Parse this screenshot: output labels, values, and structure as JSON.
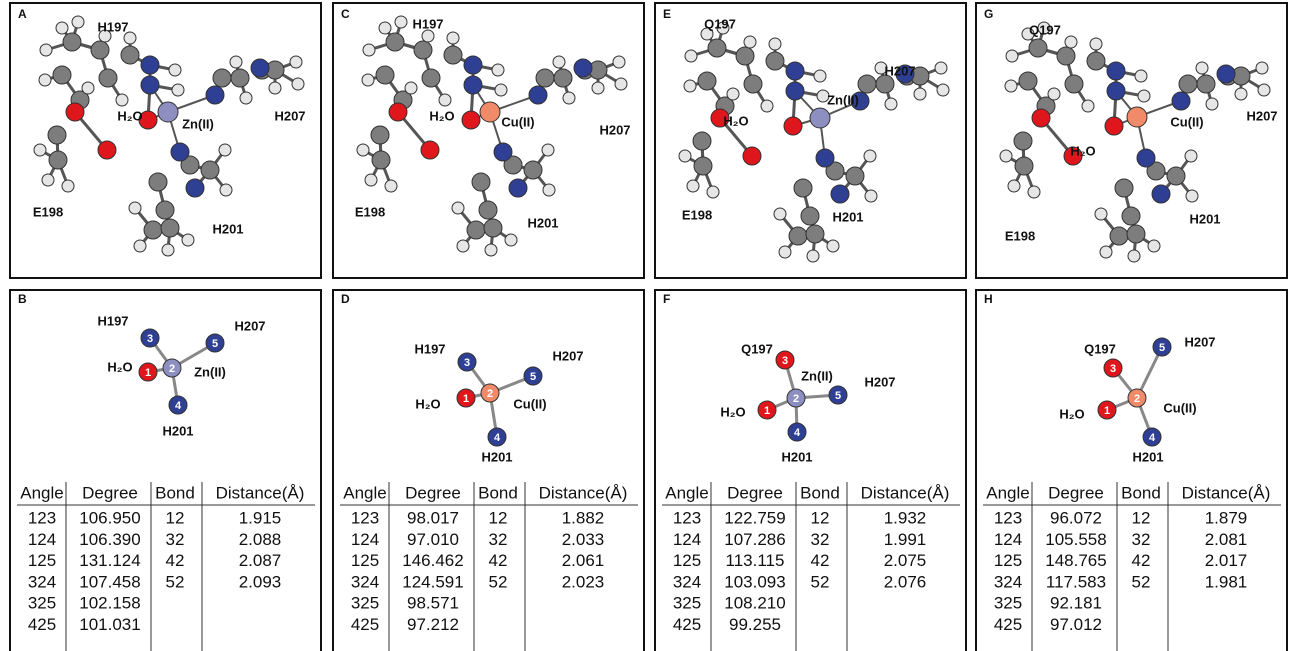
{
  "columns": [
    {
      "structure": {
        "letter": "A",
        "labels": [
          "H197",
          "H₂O",
          "Zn(II)",
          "H207",
          "E198",
          "H201"
        ]
      },
      "schematic": {
        "letter": "B",
        "labels": [
          "H197",
          "H207",
          "H₂O",
          "Zn(II)",
          "H201"
        ],
        "atom_numbers": [
          "1",
          "2",
          "3",
          "4",
          "5"
        ]
      },
      "table": {
        "header": [
          "Angle",
          "Degree",
          "Bond",
          "Distance(Å)"
        ],
        "rows": [
          [
            "123",
            "106.950",
            "12",
            "1.915"
          ],
          [
            "124",
            "106.390",
            "32",
            "2.088"
          ],
          [
            "125",
            "131.124",
            "42",
            "2.087"
          ],
          [
            "324",
            "107.458",
            "52",
            "2.093"
          ],
          [
            "325",
            "102.158"
          ],
          [
            "425",
            "101.031"
          ]
        ]
      }
    },
    {
      "structure": {
        "letter": "C",
        "labels": [
          "H197",
          "H₂O",
          "Cu(II)",
          "H207",
          "E198",
          "H201"
        ]
      },
      "schematic": {
        "letter": "D",
        "labels": [
          "H197",
          "H207",
          "H₂O",
          "Cu(II)",
          "H201"
        ],
        "atom_numbers": [
          "1",
          "2",
          "3",
          "4",
          "5"
        ]
      },
      "table": {
        "header": [
          "Angle",
          "Degree",
          "Bond",
          "Distance(Å)"
        ],
        "rows": [
          [
            "123",
            "98.017",
            "12",
            "1.882"
          ],
          [
            "124",
            "97.010",
            "32",
            "2.033"
          ],
          [
            "125",
            "146.462",
            "42",
            "2.061"
          ],
          [
            "324",
            "124.591",
            "52",
            "2.023"
          ],
          [
            "325",
            "98.571"
          ],
          [
            "425",
            "97.212"
          ]
        ]
      }
    },
    {
      "structure": {
        "letter": "E",
        "labels": [
          "Q197",
          "H₂O",
          "Zn(II)",
          "H207",
          "E198",
          "H201"
        ]
      },
      "schematic": {
        "letter": "F",
        "labels": [
          "Q197",
          "H207",
          "H₂O",
          "Zn(II)",
          "H201"
        ],
        "atom_numbers": [
          "1",
          "2",
          "3",
          "4",
          "5"
        ]
      },
      "table": {
        "header": [
          "Angle",
          "Degree",
          "Bond",
          "Distance(Å)"
        ],
        "rows": [
          [
            "123",
            "122.759",
            "12",
            "1.932"
          ],
          [
            "124",
            "107.286",
            "32",
            "1.991"
          ],
          [
            "125",
            "113.115",
            "42",
            "2.075"
          ],
          [
            "324",
            "103.093",
            "52",
            "2.076"
          ],
          [
            "325",
            "108.210"
          ],
          [
            "425",
            "99.255"
          ]
        ]
      }
    },
    {
      "structure": {
        "letter": "G",
        "labels": [
          "Q197",
          "H₂O",
          "Cu(II)",
          "H207",
          "E198",
          "H201"
        ]
      },
      "schematic": {
        "letter": "H",
        "labels": [
          "Q197",
          "H207",
          "H₂O",
          "Cu(II)",
          "H201"
        ],
        "atom_numbers": [
          "1",
          "2",
          "3",
          "4",
          "5"
        ]
      },
      "table": {
        "header": [
          "Angle",
          "Degree",
          "Bond",
          "Distance(Å)"
        ],
        "rows": [
          [
            "123",
            "96.072",
            "12",
            "1.879"
          ],
          [
            "124",
            "105.558",
            "32",
            "2.081"
          ],
          [
            "125",
            "148.765",
            "42",
            "2.017"
          ],
          [
            "324",
            "117.583",
            "52",
            "1.981"
          ],
          [
            "325",
            "92.181"
          ],
          [
            "425",
            "97.012"
          ]
        ]
      }
    }
  ]
}
